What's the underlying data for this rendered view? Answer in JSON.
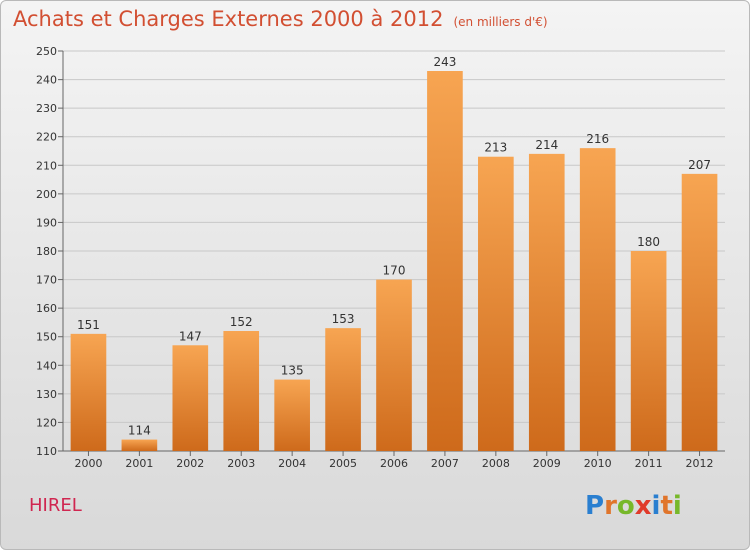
{
  "title": "Achats et Charges Externes 2000 à 2012",
  "subtitle": "(en milliers d'€)",
  "town": "HIREL",
  "logo": {
    "text": "Proxiti",
    "letters": [
      {
        "ch": "P",
        "color": "#2a7fd0"
      },
      {
        "ch": "r",
        "color": "#e0752b"
      },
      {
        "ch": "o",
        "color": "#77b82a"
      },
      {
        "ch": "x",
        "color": "#e03a2a"
      },
      {
        "ch": "i",
        "color": "#2a7fd0"
      },
      {
        "ch": "t",
        "color": "#e0752b"
      },
      {
        "ch": "i",
        "color": "#77b82a"
      }
    ]
  },
  "colors": {
    "bar_top": "#f7a552",
    "bar_bottom": "#ce6a1b",
    "title": "#d24f32",
    "town": "#d02650",
    "grid": "#c8c8c8"
  },
  "chart_data": {
    "type": "bar",
    "categories": [
      "2000",
      "2001",
      "2002",
      "2003",
      "2004",
      "2005",
      "2006",
      "2007",
      "2008",
      "2009",
      "2010",
      "2011",
      "2012"
    ],
    "values": [
      151,
      114,
      147,
      152,
      135,
      153,
      170,
      243,
      213,
      214,
      216,
      180,
      207
    ],
    "title": "Achats et Charges Externes 2000 à 2012",
    "ylim": [
      110,
      250
    ],
    "yticks": [
      110,
      120,
      130,
      140,
      150,
      160,
      170,
      180,
      190,
      200,
      210,
      220,
      230,
      240,
      250
    ],
    "grid": true,
    "data_labels": true
  }
}
